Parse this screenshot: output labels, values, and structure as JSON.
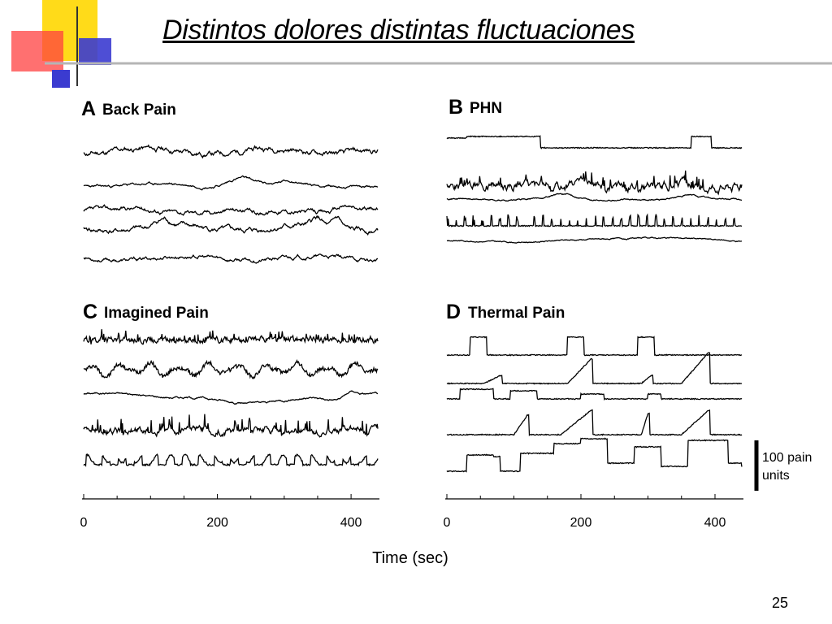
{
  "slide": {
    "title": "Distintos dolores distintas fluctuaciones",
    "number": "25"
  },
  "colors": {
    "trace": "#000000",
    "deco_yellow": "#ffd700",
    "deco_red": "#ff4040",
    "deco_blue": "#3333cc",
    "deco_gray": "#9a9a9a"
  },
  "chart_data": [
    {
      "type": "line",
      "letter": "A",
      "title": "Back Pain",
      "x_range": [
        0,
        440
      ],
      "xticks": [],
      "series": [
        {
          "baseline": 186,
          "amp": 3.2,
          "noise": 3.2,
          "kind": "noisy",
          "seed": 11
        },
        {
          "baseline": 228,
          "amp": 1.8,
          "noise": 1.5,
          "kind": "drift",
          "bumps": [
            [
              235,
              10,
              25
            ],
            [
              310,
              4,
              18
            ]
          ],
          "seed": 23
        },
        {
          "baseline": 259,
          "amp": 2.5,
          "noise": 2.6,
          "kind": "noisy",
          "bumps": [
            [
              260,
              -6,
              20
            ],
            [
              390,
              6,
              15
            ]
          ],
          "seed": 37
        },
        {
          "baseline": 281,
          "amp": 3.5,
          "noise": 3.0,
          "kind": "wander",
          "bumps": [
            [
              120,
              8,
              15
            ],
            [
              350,
              10,
              10
            ],
            [
              380,
              12,
              8
            ]
          ],
          "seed": 41
        },
        {
          "baseline": 318,
          "amp": 2.5,
          "noise": 2.2,
          "kind": "noisy",
          "seed": 53
        }
      ]
    },
    {
      "type": "line",
      "letter": "B",
      "title": "PHN",
      "x_range": [
        0,
        440
      ],
      "xticks": [],
      "series": [
        {
          "baseline": 182,
          "kind": "steps",
          "steps": [
            [
              0,
              12
            ],
            [
              20,
              12
            ],
            [
              30,
              14
            ],
            [
              130,
              14
            ],
            [
              140,
              0
            ],
            [
              360,
              0
            ],
            [
              365,
              14
            ],
            [
              390,
              14
            ],
            [
              395,
              0
            ],
            [
              440,
              0
            ]
          ],
          "seed": 61
        },
        {
          "baseline": 228,
          "amp": 8,
          "noise": 3.5,
          "kind": "spiky",
          "seed": 67
        },
        {
          "baseline": 245,
          "amp": 1.2,
          "noise": 1.0,
          "kind": "drift",
          "bumps": [
            [
              170,
              5,
              25
            ],
            [
              360,
              3,
              20
            ]
          ],
          "seed": 71
        },
        {
          "baseline": 278,
          "kind": "spikes",
          "spikeH": 14,
          "spikeN": 34,
          "seed": 79
        },
        {
          "baseline": 297,
          "amp": 1.0,
          "noise": 0.8,
          "kind": "drift",
          "bumps": [
            [
              300,
              5,
              80
            ]
          ],
          "seed": 83
        }
      ]
    },
    {
      "type": "line",
      "letter": "C",
      "title": "Imagined Pain",
      "x_range": [
        0,
        440
      ],
      "xticks": [
        0,
        200,
        400
      ],
      "series": [
        {
          "baseline": 418,
          "amp": 5,
          "noise": 3.0,
          "kind": "choppy",
          "seed": 89
        },
        {
          "baseline": 455,
          "amp": 9,
          "noise": 2.5,
          "kind": "wavy",
          "seed": 97
        },
        {
          "baseline": 486,
          "amp": 2.5,
          "noise": 1.2,
          "kind": "drift",
          "bumps": [
            [
              240,
              -12,
              60
            ],
            [
              380,
              -7,
              30
            ],
            [
              400,
              6,
              12
            ]
          ],
          "seed": 101
        },
        {
          "baseline": 530,
          "amp": 10,
          "noise": 3.0,
          "kind": "spiky",
          "seed": 103
        },
        {
          "baseline": 572,
          "amp": 12,
          "noise": 2.0,
          "kind": "pulses",
          "seed": 107
        }
      ]
    },
    {
      "type": "line",
      "letter": "D",
      "title": "Thermal Pain",
      "x_range": [
        0,
        440
      ],
      "xticks": [
        0,
        200,
        400
      ],
      "series": [
        {
          "baseline": 437,
          "kind": "steps",
          "steps": [
            [
              0,
              0
            ],
            [
              30,
              0
            ],
            [
              35,
              22
            ],
            [
              55,
              22
            ],
            [
              60,
              0
            ],
            [
              175,
              0
            ],
            [
              180,
              22
            ],
            [
              200,
              22
            ],
            [
              205,
              0
            ],
            [
              280,
              0
            ],
            [
              285,
              22
            ],
            [
              305,
              22
            ],
            [
              310,
              0
            ],
            [
              440,
              0
            ]
          ],
          "seed": 113
        },
        {
          "baseline": 472,
          "kind": "ramps",
          "ramps": [
            [
              55,
              80,
              10
            ],
            [
              180,
              215,
              30
            ],
            [
              290,
              305,
              10
            ],
            [
              350,
              390,
              38
            ]
          ],
          "seed": 127
        },
        {
          "baseline": 491,
          "kind": "steps",
          "steps": [
            [
              0,
              0
            ],
            [
              20,
              12
            ],
            [
              60,
              12
            ],
            [
              70,
              0
            ],
            [
              95,
              10
            ],
            [
              130,
              10
            ],
            [
              135,
              0
            ],
            [
              200,
              6
            ],
            [
              230,
              6
            ],
            [
              235,
              0
            ],
            [
              300,
              6
            ],
            [
              320,
              0
            ],
            [
              440,
              0
            ]
          ],
          "seed": 131
        },
        {
          "baseline": 535,
          "kind": "ramps",
          "ramps": [
            [
              100,
              120,
              24
            ],
            [
              170,
              215,
              30
            ],
            [
              290,
              300,
              26
            ],
            [
              350,
              390,
              30
            ]
          ],
          "seed": 137
        },
        {
          "baseline": 580,
          "kind": "steps",
          "steps": [
            [
              0,
              0
            ],
            [
              30,
              20
            ],
            [
              70,
              18
            ],
            [
              80,
              0
            ],
            [
              110,
              22
            ],
            [
              160,
              34
            ],
            [
              200,
              40
            ],
            [
              240,
              10
            ],
            [
              280,
              30
            ],
            [
              320,
              6
            ],
            [
              360,
              38
            ],
            [
              420,
              10
            ],
            [
              440,
              6
            ]
          ],
          "seed": 139
        }
      ]
    }
  ],
  "figure": {
    "xlabel": "Time (sec)",
    "scale_bar_label_line1": "100 pain",
    "scale_bar_label_line2": "units",
    "scale_bar_value": 100
  }
}
